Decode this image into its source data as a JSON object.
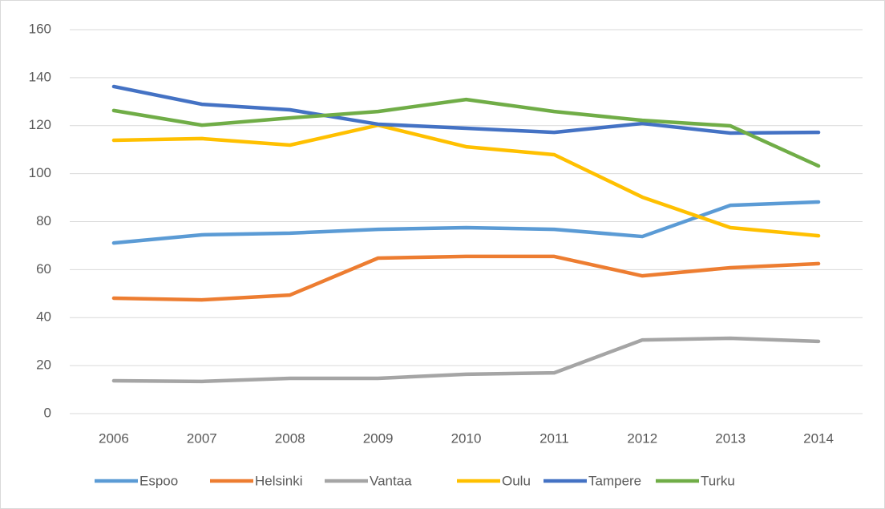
{
  "chart_data": {
    "type": "line",
    "categories": [
      "2006",
      "2007",
      "2008",
      "2009",
      "2010",
      "2011",
      "2012",
      "2013",
      "2014"
    ],
    "series": [
      {
        "name": "Espoo",
        "color": "#5b9bd5",
        "values": [
          71.1,
          74.5,
          75.2,
          76.8,
          77.5,
          76.8,
          73.8,
          86.8,
          88.2
        ]
      },
      {
        "name": "Helsinki",
        "color": "#ed7d31",
        "values": [
          48.1,
          47.4,
          49.4,
          64.8,
          65.5,
          65.5,
          57.4,
          60.8,
          62.5
        ]
      },
      {
        "name": "Vantaa",
        "color": "#a5a5a5",
        "values": [
          13.7,
          13.4,
          14.7,
          14.7,
          16.4,
          17,
          30.7,
          31.4,
          30.1
        ]
      },
      {
        "name": "Oulu",
        "color": "#ffc000",
        "values": [
          113.9,
          114.6,
          111.9,
          120.2,
          111.2,
          107.9,
          90.2,
          77.5,
          74.1
        ]
      },
      {
        "name": "Tampere",
        "color": "#4472c4",
        "values": [
          136.3,
          128.9,
          126.6,
          120.6,
          118.9,
          117.2,
          120.9,
          116.9,
          117.2
        ]
      },
      {
        "name": "Turku",
        "color": "#70ad47",
        "values": [
          126.3,
          120.2,
          123.2,
          125.9,
          130.9,
          125.9,
          122.2,
          119.9,
          103.2
        ]
      }
    ],
    "ylim": [
      0,
      160
    ],
    "yticks": [
      0,
      20,
      40,
      60,
      80,
      100,
      120,
      140,
      160
    ],
    "grid": true,
    "legend": "bottom"
  }
}
